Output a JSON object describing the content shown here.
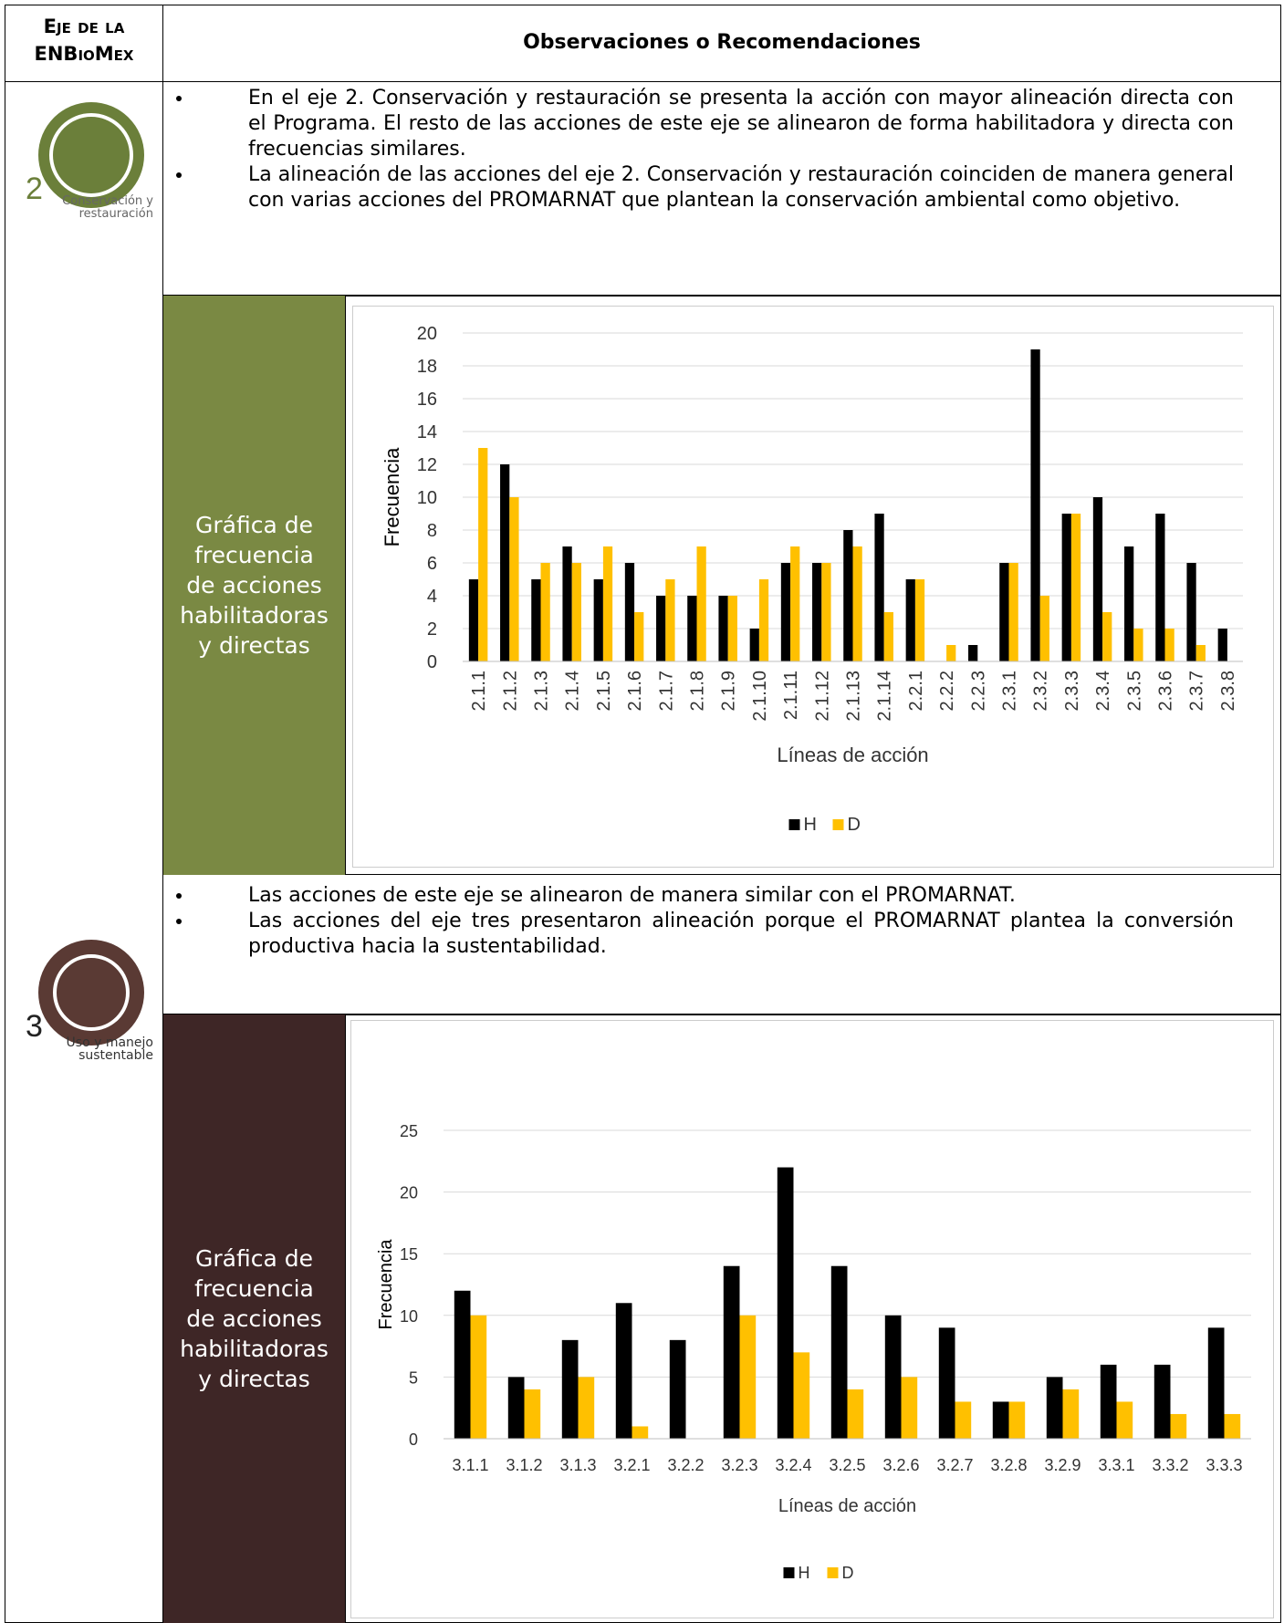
{
  "table": {
    "header": [
      "Eje de la ENBioMex",
      "Observaciones o Recomendaciones"
    ],
    "rows": [
      {
        "axis_number": "2",
        "axis_label": "Conservación y restauración",
        "bullets": [
          "En el eje 2. Conservación y restauración se presenta la acción con mayor alineación directa con el Programa. El resto de las acciones de este eje se alinearon de forma habilitadora y directa con frecuencias similares.",
          "La alineación de las acciones del eje 2. Conservación y restauración coinciden de manera general con varias acciones del PROMARNAT que plantean la conservación ambiental como objetivo."
        ],
        "chart_caption": "Gráfica de frecuencia de acciones habilitadoras y directas"
      },
      {
        "axis_number": "3",
        "axis_label": "Uso y manejo sustentable",
        "bullets": [
          "Las acciones de este eje se alinearon de manera similar con el PROMARNAT.",
          "Las acciones del eje tres presentaron alineación porque el PROMARNAT plantea la conversión productiva hacia la sustentabilidad."
        ],
        "chart_caption": "Gráfica de frecuencia de acciones habilitadoras y directas"
      }
    ]
  },
  "chart_data": [
    {
      "type": "bar",
      "x_label": "Líneas de acción",
      "y_label": "Frecuencia",
      "categories": [
        "2.1.1",
        "2.1.2",
        "2.1.3",
        "2.1.4",
        "2.1.5",
        "2.1.6",
        "2.1.7",
        "2.1.8",
        "2.1.9",
        "2.1.10",
        "2.1.11",
        "2.1.12",
        "2.1.13",
        "2.1.14",
        "2.2.1",
        "2.2.2",
        "2.2.3",
        "2.3.1",
        "2.3.2",
        "2.3.3",
        "2.3.4",
        "2.3.5",
        "2.3.6",
        "2.3.7",
        "2.3.8"
      ],
      "series": [
        {
          "name": "H",
          "color": "#000000",
          "values": [
            5,
            12,
            5,
            7,
            5,
            6,
            4,
            4,
            4,
            2,
            6,
            6,
            8,
            9,
            5,
            0,
            1,
            6,
            19,
            9,
            10,
            7,
            9,
            6,
            2
          ]
        },
        {
          "name": "D",
          "color": "#ffc000",
          "values": [
            13,
            10,
            6,
            6,
            7,
            3,
            5,
            7,
            4,
            5,
            7,
            6,
            7,
            3,
            5,
            1,
            0,
            6,
            4,
            9,
            3,
            2,
            2,
            1,
            0
          ]
        }
      ],
      "ylim": [
        0,
        20
      ],
      "yticks": [
        0,
        2,
        4,
        6,
        8,
        10,
        12,
        14,
        16,
        18,
        20
      ],
      "grid": true,
      "legend": "bottom"
    },
    {
      "type": "bar",
      "x_label": "Líneas de acción",
      "y_label": "Frecuencia",
      "categories": [
        "3.1.1",
        "3.1.2",
        "3.1.3",
        "3.2.1",
        "3.2.2",
        "3.2.3",
        "3.2.4",
        "3.2.5",
        "3.2.6",
        "3.2.7",
        "3.2.8",
        "3.2.9",
        "3.3.1",
        "3.3.2",
        "3.3.3"
      ],
      "series": [
        {
          "name": "H",
          "color": "#000000",
          "values": [
            12,
            5,
            8,
            11,
            8,
            14,
            22,
            14,
            10,
            9,
            3,
            5,
            6,
            6,
            9
          ]
        },
        {
          "name": "D",
          "color": "#ffc000",
          "values": [
            10,
            4,
            5,
            1,
            0,
            10,
            7,
            4,
            5,
            3,
            3,
            4,
            3,
            2,
            2
          ]
        }
      ],
      "ylim": [
        0,
        25
      ],
      "yticks": [
        0,
        5,
        10,
        15,
        20,
        25
      ],
      "grid": true,
      "legend": "bottom"
    }
  ]
}
